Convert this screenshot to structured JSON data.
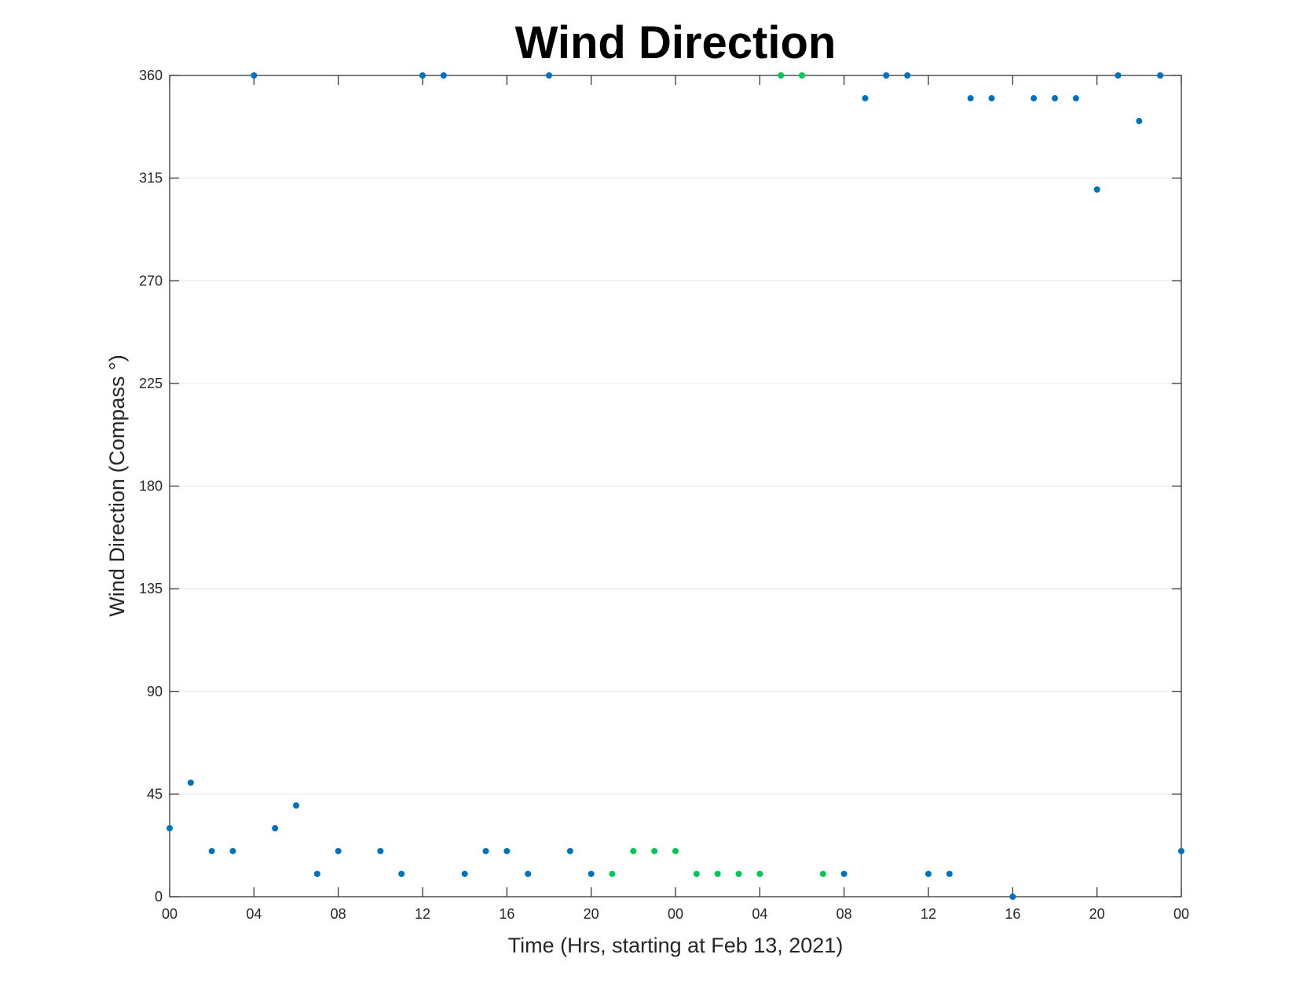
{
  "chart_data": {
    "type": "scatter",
    "title": "Wind Direction",
    "xlabel": "Time (Hrs, starting at Feb 13, 2021)",
    "ylabel": "Wind Direction (Compass °)",
    "x_unit": "hours",
    "xlim": [
      0,
      48
    ],
    "ylim": [
      0,
      360
    ],
    "grid": true,
    "yticks": [
      0,
      45,
      90,
      135,
      180,
      225,
      270,
      315,
      360
    ],
    "xticks": [
      0,
      4,
      8,
      12,
      16,
      20,
      24,
      28,
      32,
      36,
      40,
      44,
      48
    ],
    "xtick_labels": [
      "00",
      "04",
      "08",
      "12",
      "16",
      "20",
      "00",
      "04",
      "08",
      "12",
      "16",
      "20",
      "00"
    ],
    "colors": {
      "blue": "#0072bd",
      "green": "#00c853",
      "grid": "#e6e6e6",
      "axis": "#262626"
    },
    "series": [
      {
        "color": "blue",
        "points": [
          [
            0,
            30
          ],
          [
            1,
            50
          ],
          [
            2,
            20
          ],
          [
            3,
            20
          ],
          [
            4,
            360
          ],
          [
            5,
            30
          ],
          [
            6,
            40
          ],
          [
            7,
            10
          ],
          [
            8,
            20
          ],
          [
            10,
            20
          ],
          [
            11,
            10
          ],
          [
            12,
            360
          ],
          [
            13,
            360
          ],
          [
            14,
            10
          ],
          [
            15,
            20
          ],
          [
            16,
            20
          ],
          [
            17,
            10
          ],
          [
            18,
            360
          ],
          [
            19,
            20
          ],
          [
            20,
            10
          ],
          [
            32,
            10
          ],
          [
            33,
            350
          ],
          [
            34,
            360
          ],
          [
            35,
            360
          ],
          [
            36,
            10
          ],
          [
            37,
            10
          ],
          [
            38,
            350
          ],
          [
            39,
            350
          ],
          [
            40,
            0
          ],
          [
            41,
            350
          ],
          [
            42,
            350
          ],
          [
            43,
            350
          ],
          [
            44,
            310
          ],
          [
            45,
            360
          ],
          [
            46,
            340
          ],
          [
            47,
            360
          ],
          [
            48,
            20
          ]
        ]
      },
      {
        "color": "green",
        "points": [
          [
            21,
            10
          ],
          [
            22,
            20
          ],
          [
            23,
            20
          ],
          [
            24,
            20
          ],
          [
            25,
            10
          ],
          [
            26,
            10
          ],
          [
            27,
            10
          ],
          [
            28,
            10
          ],
          [
            29,
            360
          ],
          [
            30,
            360
          ],
          [
            31,
            10
          ]
        ]
      }
    ]
  }
}
